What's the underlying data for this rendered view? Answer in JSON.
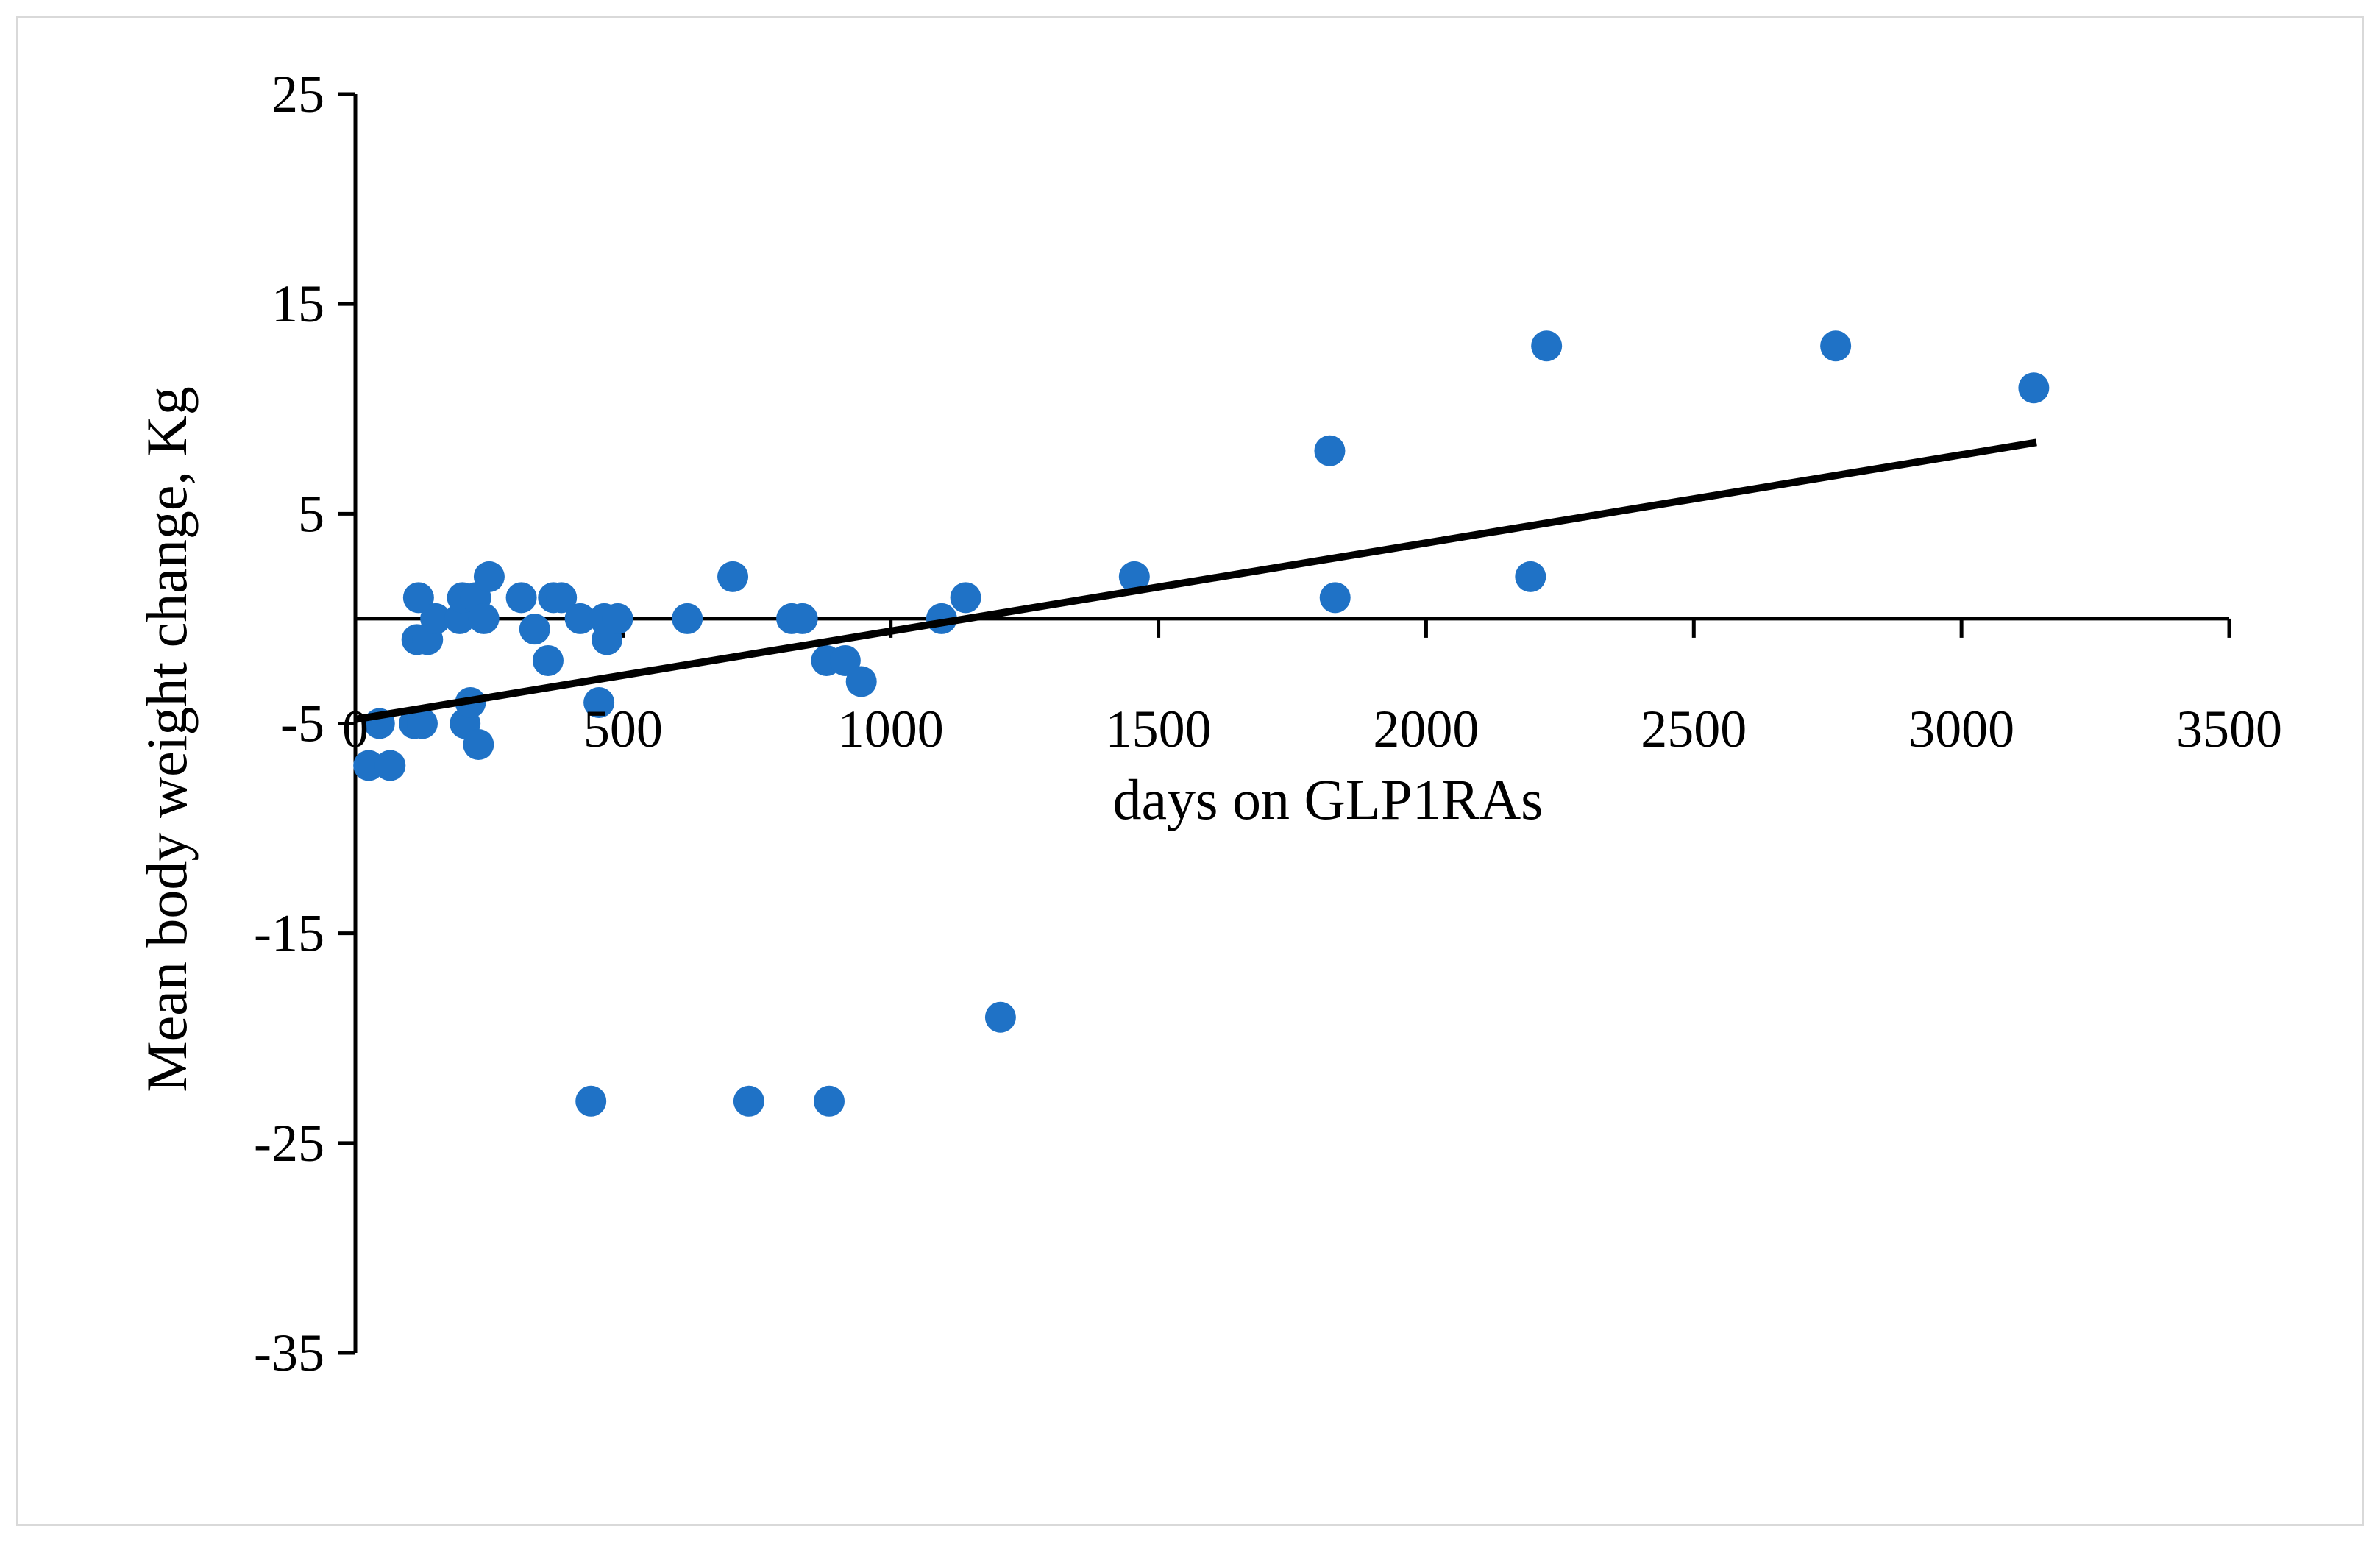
{
  "chart_data": {
    "type": "scatter",
    "title": "",
    "xlabel": "days on GLP1RAs",
    "ylabel": "Mean body weight change, Kg",
    "xlim": [
      0,
      3500
    ],
    "ylim": [
      -35,
      25
    ],
    "x_ticks": [
      0,
      500,
      1000,
      1500,
      2000,
      2500,
      3000,
      3500
    ],
    "y_ticks": [
      25,
      15,
      5,
      -5,
      -15,
      -25,
      -35
    ],
    "grid": false,
    "legend": "none",
    "x_tick_labels": [
      "0",
      "500",
      "1000",
      "1500",
      "2000",
      "2500",
      "3000",
      "3500"
    ],
    "y_tick_labels": [
      "25",
      "15",
      "5",
      "-5",
      "-15",
      "-25",
      "-35"
    ],
    "marker_color": "#1f72c6",
    "trendline_color": "#000000",
    "trendline": {
      "x": [
        0,
        3140
      ],
      "y": [
        -4.8,
        8.4
      ]
    },
    "points": [
      {
        "x": 25,
        "y": -7
      },
      {
        "x": 45,
        "y": -5
      },
      {
        "x": 65,
        "y": -7
      },
      {
        "x": 110,
        "y": -5
      },
      {
        "x": 115,
        "y": -1
      },
      {
        "x": 118,
        "y": 1
      },
      {
        "x": 125,
        "y": -5
      },
      {
        "x": 135,
        "y": -1
      },
      {
        "x": 150,
        "y": 0
      },
      {
        "x": 195,
        "y": 0
      },
      {
        "x": 200,
        "y": 1
      },
      {
        "x": 205,
        "y": -5
      },
      {
        "x": 215,
        "y": -4
      },
      {
        "x": 225,
        "y": 1
      },
      {
        "x": 230,
        "y": -6
      },
      {
        "x": 240,
        "y": 0
      },
      {
        "x": 250,
        "y": 2
      },
      {
        "x": 310,
        "y": 1
      },
      {
        "x": 335,
        "y": -0.5
      },
      {
        "x": 360,
        "y": -2
      },
      {
        "x": 370,
        "y": 1
      },
      {
        "x": 385,
        "y": 1
      },
      {
        "x": 420,
        "y": 0
      },
      {
        "x": 440,
        "y": -23
      },
      {
        "x": 455,
        "y": -4
      },
      {
        "x": 465,
        "y": 0
      },
      {
        "x": 470,
        "y": -1
      },
      {
        "x": 490,
        "y": 0
      },
      {
        "x": 620,
        "y": 0
      },
      {
        "x": 705,
        "y": 2
      },
      {
        "x": 735,
        "y": -23
      },
      {
        "x": 815,
        "y": 0
      },
      {
        "x": 835,
        "y": 0
      },
      {
        "x": 880,
        "y": -2
      },
      {
        "x": 885,
        "y": -23
      },
      {
        "x": 915,
        "y": -2
      },
      {
        "x": 945,
        "y": -3
      },
      {
        "x": 1095,
        "y": 0
      },
      {
        "x": 1140,
        "y": 1
      },
      {
        "x": 1205,
        "y": -19
      },
      {
        "x": 1455,
        "y": 2
      },
      {
        "x": 1820,
        "y": 8
      },
      {
        "x": 1830,
        "y": 1
      },
      {
        "x": 2195,
        "y": 2
      },
      {
        "x": 2225,
        "y": 13
      },
      {
        "x": 2765,
        "y": 13
      },
      {
        "x": 3135,
        "y": 11
      }
    ]
  }
}
